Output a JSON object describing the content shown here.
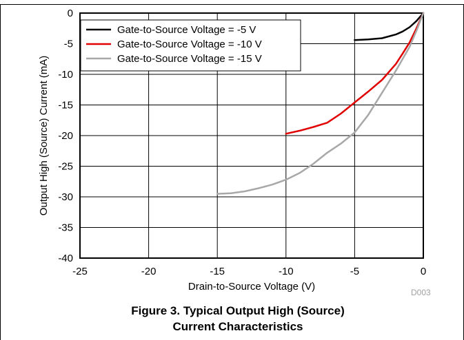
{
  "chart_data": {
    "type": "line",
    "xlabel": "Drain-to-Source Voltage (V)",
    "ylabel": "Output High (Source) Current (mA)",
    "xlim": [
      -25,
      0
    ],
    "ylim": [
      -40,
      0
    ],
    "xticks": [
      -25,
      -20,
      -15,
      -10,
      -5,
      0
    ],
    "yticks": [
      0,
      -5,
      -10,
      -15,
      -20,
      -25,
      -30,
      -35,
      -40
    ],
    "grid": true,
    "legend_position": "top-left",
    "series": [
      {
        "name": "Gate-to-Source Voltage = -5 V",
        "color": "#000000",
        "x": [
          -5,
          -4,
          -3,
          -2,
          -1.5,
          -1,
          -0.5,
          0
        ],
        "y": [
          -4.4,
          -4.3,
          -4.1,
          -3.5,
          -3.0,
          -2.3,
          -1.3,
          0
        ]
      },
      {
        "name": "Gate-to-Source Voltage = -10 V",
        "color": "#e00000",
        "x": [
          -10,
          -9,
          -8,
          -7,
          -6,
          -5,
          -4,
          -3,
          -2,
          -1.5,
          -1,
          -0.5,
          0
        ],
        "y": [
          -19.7,
          -19.2,
          -18.6,
          -17.9,
          -16.4,
          -14.6,
          -12.8,
          -10.9,
          -8.3,
          -6.6,
          -4.8,
          -2.5,
          0
        ]
      },
      {
        "name": "Gate-to-Source Voltage = -15 V",
        "color": "#a8a8a8",
        "x": [
          -15,
          -14,
          -13,
          -12,
          -11,
          -10,
          -9,
          -8,
          -7,
          -6,
          -5,
          -4,
          -3,
          -2,
          -1,
          -0.5,
          0
        ],
        "y": [
          -29.5,
          -29.4,
          -29.1,
          -28.6,
          -28.0,
          -27.2,
          -26.1,
          -24.6,
          -22.8,
          -21.3,
          -19.5,
          -16.6,
          -13.0,
          -9.4,
          -5.5,
          -2.9,
          0
        ]
      }
    ],
    "tag": "D003"
  },
  "caption": {
    "line1": "Figure 3. Typical Output High (Source)",
    "line2": "Current Characteristics"
  }
}
